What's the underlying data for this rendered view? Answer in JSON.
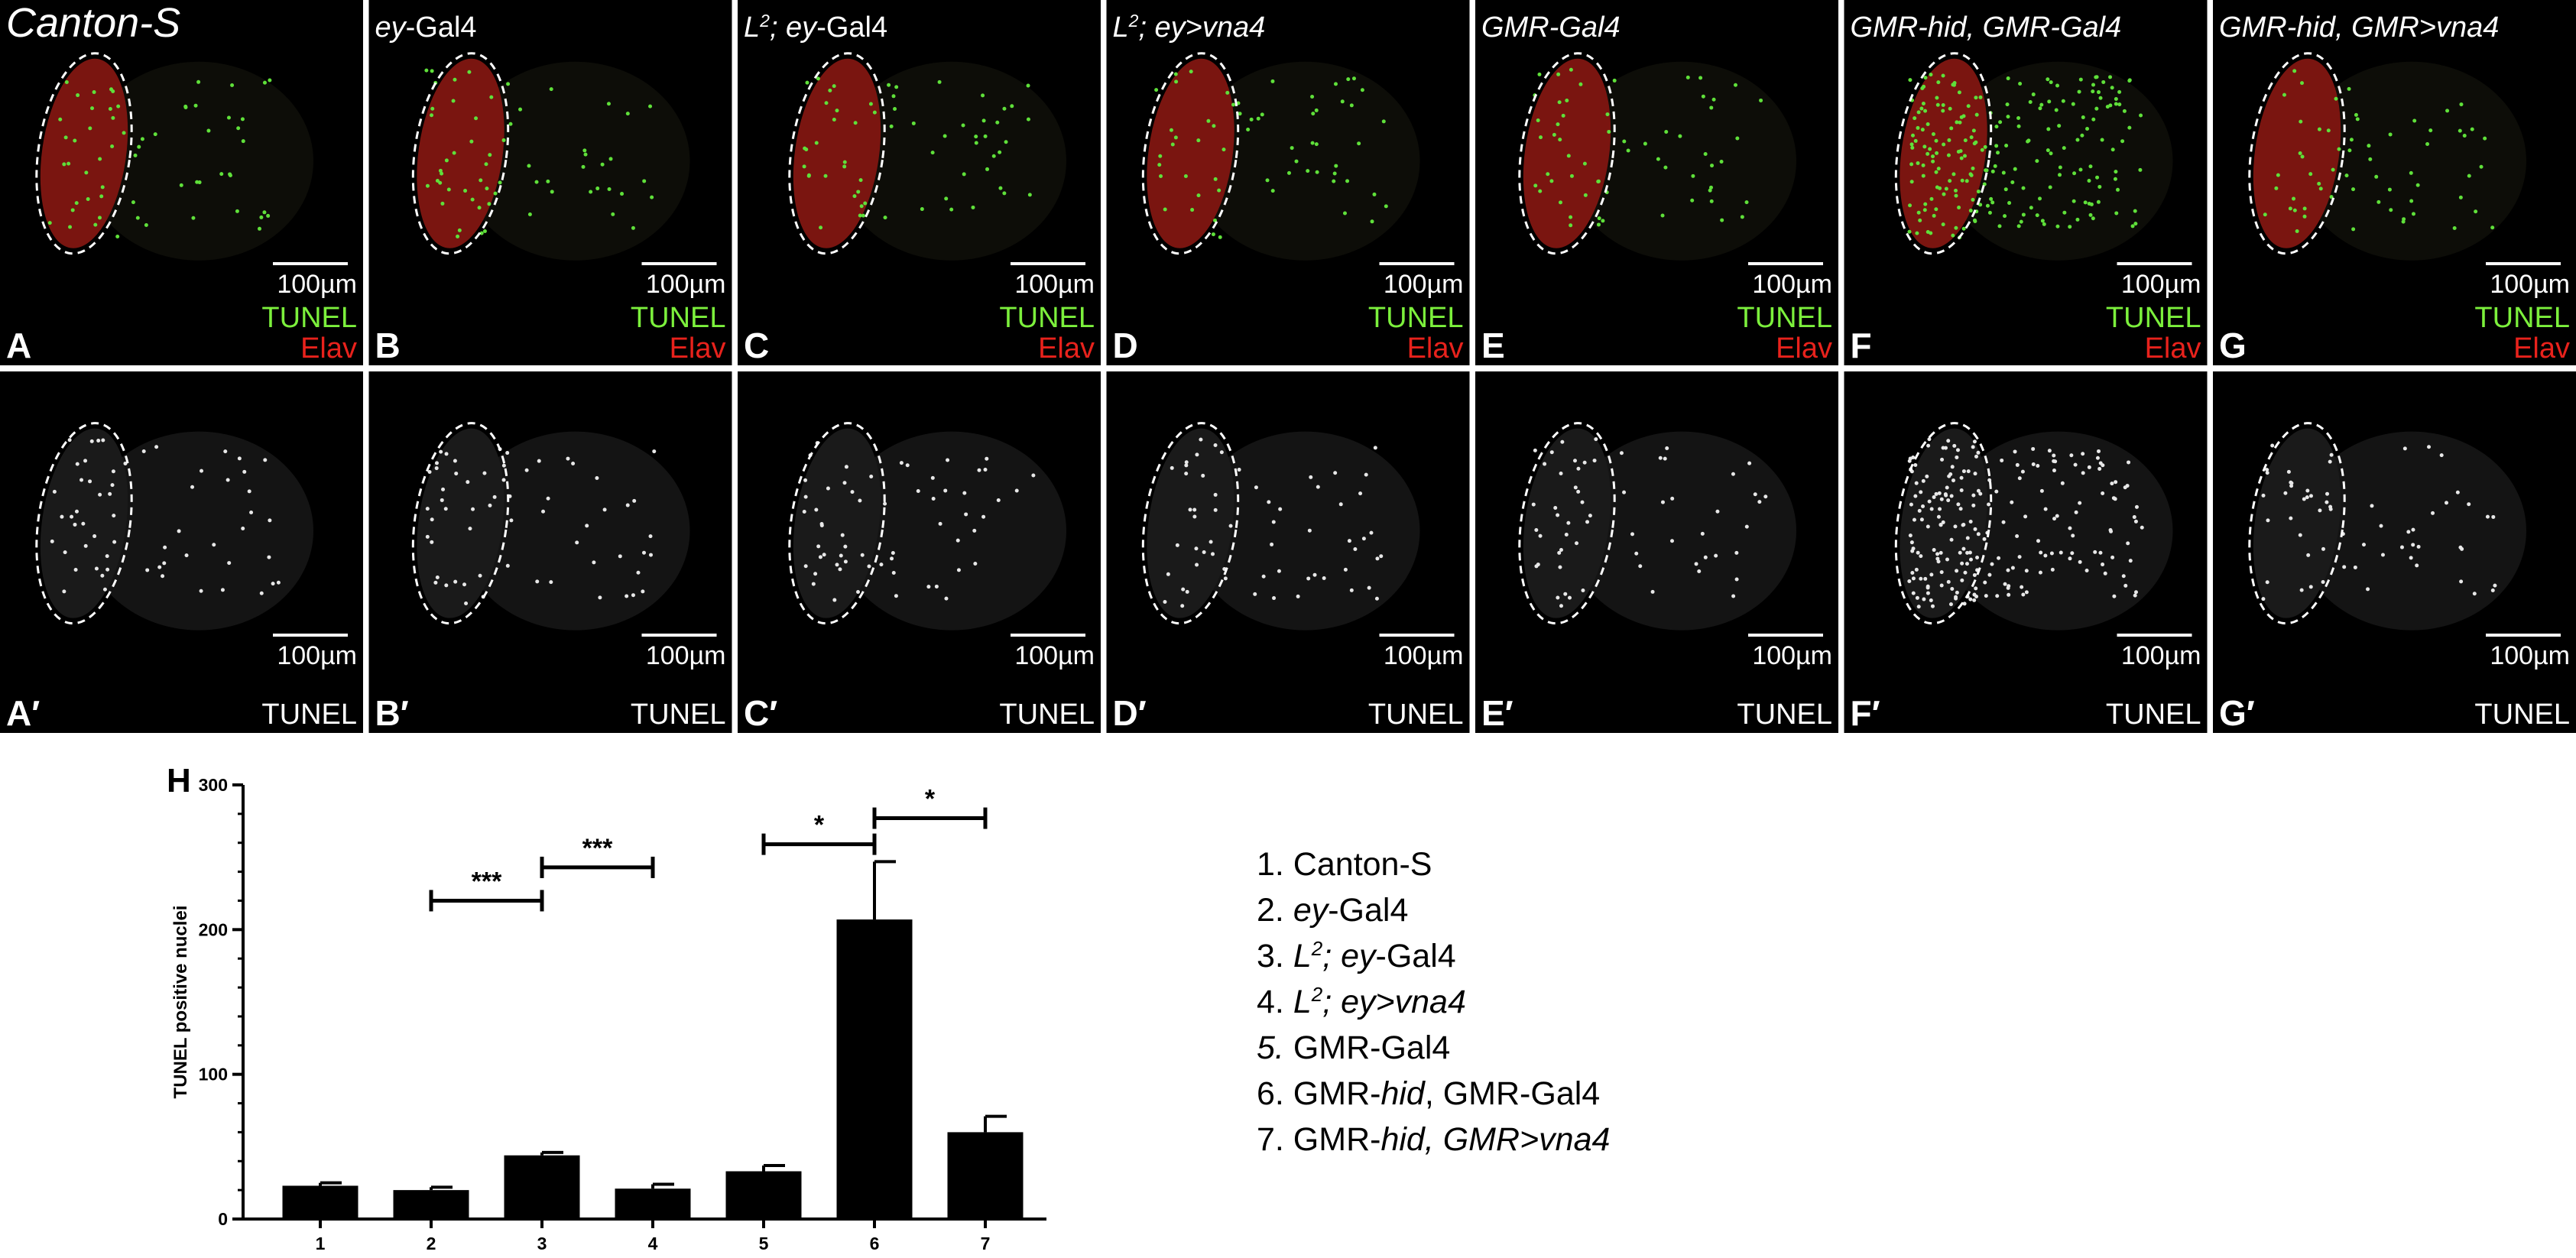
{
  "panels": {
    "scale_label": "100µm",
    "tunel": "TUNEL",
    "elav": "Elav",
    "top": [
      {
        "letter": "A",
        "genotype": [
          {
            "text": "Canton-S",
            "style": "italic"
          }
        ]
      },
      {
        "letter": "B",
        "genotype": [
          {
            "text": "ey",
            "style": "italic"
          },
          {
            "text": "-Gal4",
            "style": "normal"
          }
        ]
      },
      {
        "letter": "C",
        "genotype": [
          {
            "text": "L",
            "style": "italic"
          },
          {
            "text": "2",
            "style": "sup"
          },
          {
            "text": "; ey",
            "style": "italic"
          },
          {
            "text": "-Gal4",
            "style": "normal"
          }
        ]
      },
      {
        "letter": "D",
        "genotype": [
          {
            "text": "L",
            "style": "italic"
          },
          {
            "text": "2",
            "style": "sup"
          },
          {
            "text": "; ey>vna4",
            "style": "italic"
          }
        ]
      },
      {
        "letter": "E",
        "genotype": [
          {
            "text": "GMR-Gal4",
            "style": "italic"
          }
        ]
      },
      {
        "letter": "F",
        "genotype": [
          {
            "text": "GMR-hid, GMR-Gal4",
            "style": "italic"
          }
        ]
      },
      {
        "letter": "G",
        "genotype": [
          {
            "text": "GMR-hid, GMR>vna4",
            "style": "italic"
          }
        ]
      }
    ],
    "bottom": [
      {
        "letter": "A′"
      },
      {
        "letter": "B′"
      },
      {
        "letter": "C′"
      },
      {
        "letter": "D′"
      },
      {
        "letter": "E′"
      },
      {
        "letter": "F′"
      },
      {
        "letter": "G′"
      }
    ]
  },
  "chart_data": {
    "type": "bar",
    "panel_label": "H",
    "y_label": "TUNEL positive nuclei",
    "categories": [
      "1",
      "2",
      "3",
      "4",
      "5",
      "6",
      "7"
    ],
    "values": [
      23,
      20,
      44,
      21,
      33,
      207,
      60
    ],
    "errors": [
      2,
      2,
      2,
      3,
      4,
      40,
      11
    ],
    "color": "#000000",
    "ylim": [
      0,
      300
    ],
    "yticks": [
      0,
      100,
      200,
      300
    ],
    "significance": [
      {
        "label": "***",
        "between": [
          "2",
          "3"
        ],
        "y": 220
      },
      {
        "label": "***",
        "between": [
          "3",
          "4"
        ],
        "y": 243
      },
      {
        "label": "*",
        "between": [
          "5",
          "6"
        ],
        "y": 259
      },
      {
        "label": "*",
        "between": [
          "6",
          "7"
        ],
        "y": 277
      }
    ],
    "legend": [
      [
        {
          "text": "1. Canton-S",
          "style": "normal"
        }
      ],
      [
        {
          "text": "2. ",
          "style": "normal"
        },
        {
          "text": "ey",
          "style": "italic"
        },
        {
          "text": "-Gal4",
          "style": "normal"
        }
      ],
      [
        {
          "text": "3. ",
          "style": "normal"
        },
        {
          "text": "L",
          "style": "italic"
        },
        {
          "text": "2",
          "style": "sup"
        },
        {
          "text": "; ey",
          "style": "italic"
        },
        {
          "text": "-Gal4",
          "style": "normal"
        }
      ],
      [
        {
          "text": "4. ",
          "style": "normal"
        },
        {
          "text": "L",
          "style": "italic"
        },
        {
          "text": "2",
          "style": "sup"
        },
        {
          "text": "; ey>vna4",
          "style": "italic"
        }
      ],
      [
        {
          "text": "5.",
          "style": "italic"
        },
        {
          "text": " GMR-Gal4",
          "style": "normal"
        }
      ],
      [
        {
          "text": "6. GMR-",
          "style": "normal"
        },
        {
          "text": "hid",
          "style": "italic"
        },
        {
          "text": ", GMR-Gal4",
          "style": "normal"
        }
      ],
      [
        {
          "text": "7. GMR-",
          "style": "normal"
        },
        {
          "text": "hid, GMR>vna4",
          "style": "italic"
        }
      ]
    ]
  }
}
